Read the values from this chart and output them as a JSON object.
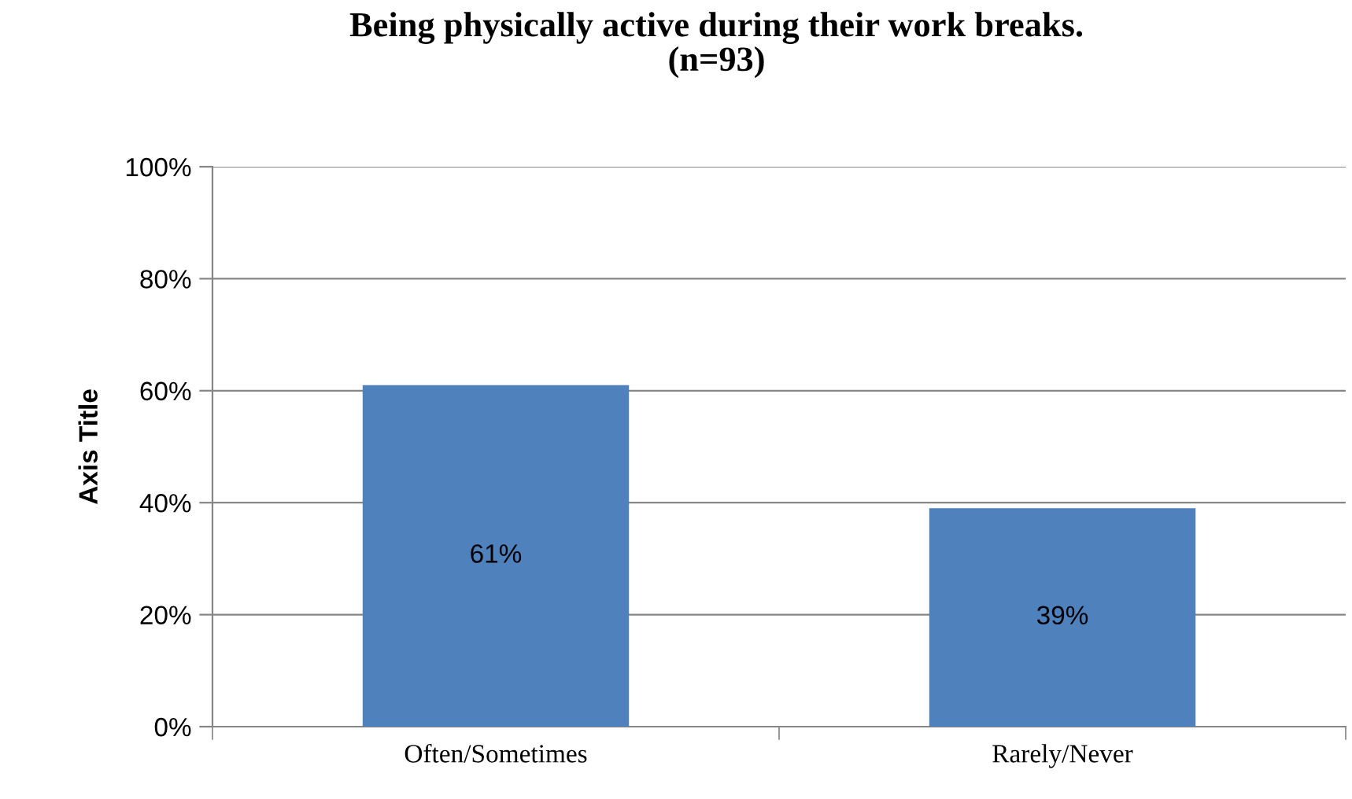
{
  "chart_data": {
    "type": "bar",
    "title": "Being physically active during their work breaks.\n(n=93)",
    "ylabel": "Axis Title",
    "categories": [
      "Often/Sometimes",
      "Rarely/Never"
    ],
    "values": [
      61,
      39
    ],
    "value_labels": [
      "61%",
      "39%"
    ],
    "color": "#4f81bd",
    "ylim": [
      0,
      100
    ],
    "yticks": [
      {
        "value": 0,
        "label": "0%"
      },
      {
        "value": 20,
        "label": "20%"
      },
      {
        "value": 40,
        "label": "40%"
      },
      {
        "value": 60,
        "label": "60%"
      },
      {
        "value": 80,
        "label": "80%"
      },
      {
        "value": 100,
        "label": "100%"
      }
    ],
    "grid": "y",
    "legend": false
  }
}
